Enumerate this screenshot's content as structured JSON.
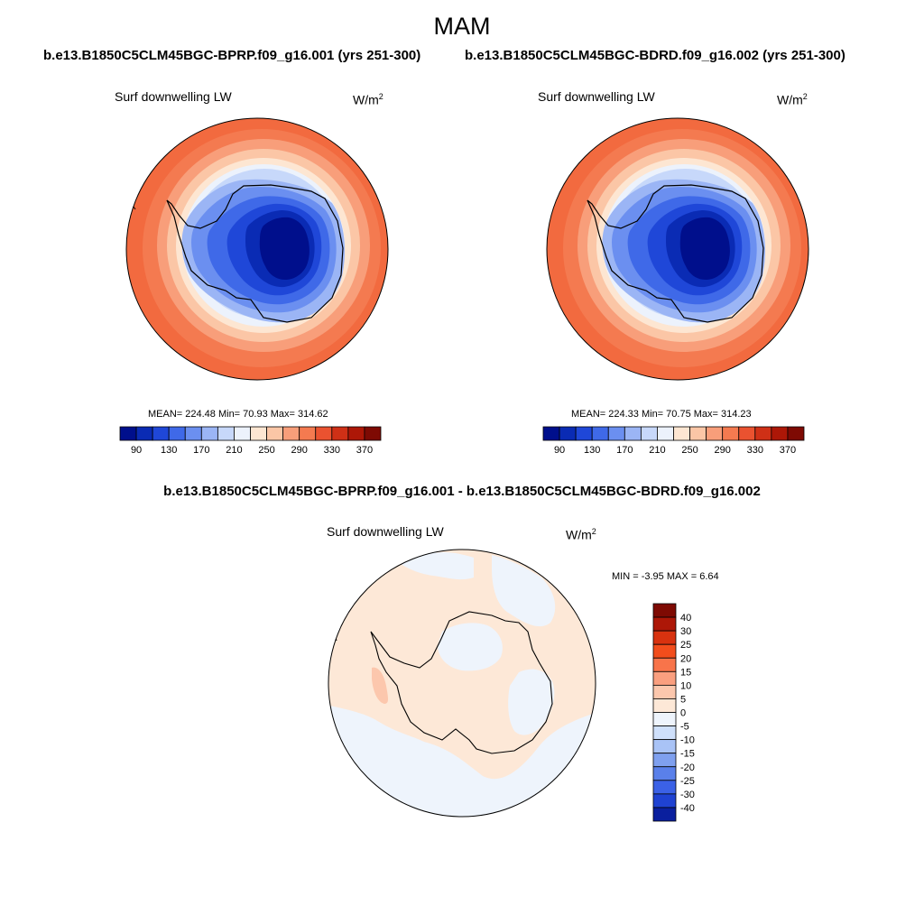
{
  "page": {
    "season_title": "MAM",
    "left_run_title": "b.e13.B1850C5CLM45BGC-BPRP.f09_g16.001 (yrs 251-300)",
    "right_run_title": "b.e13.B1850C5CLM45BGC-BDRD.f09_g16.002 (yrs 251-300)",
    "difference_title": "b.e13.B1850C5CLM45BGC-BPRP.f09_g16.001 - b.e13.B1850C5CLM45BGC-BDRD.f09_g16.002"
  },
  "panels": {
    "left": {
      "variable": "Surf downwelling LW",
      "units": "W/m",
      "units_exponent": "2",
      "stats": "MEAN= 224.48  Min=  70.93  Max= 314.62"
    },
    "right": {
      "variable": "Surf downwelling LW",
      "units": "W/m",
      "units_exponent": "2",
      "stats": "MEAN= 224.33  Min=  70.75  Max= 314.23"
    },
    "difference": {
      "variable": "Surf downwelling LW",
      "units": "W/m",
      "units_exponent": "2",
      "stats": "MIN =  -3.95 MAX =   6.64"
    }
  },
  "colorbars": {
    "absolute": {
      "tick_labels": [
        "90",
        "130",
        "170",
        "210",
        "250",
        "290",
        "330",
        "370"
      ],
      "colors": [
        "#000f8c",
        "#0a2bb4",
        "#1f47d8",
        "#3f69e8",
        "#6b8ff0",
        "#9bb5f5",
        "#c7d8fa",
        "#ecf2fc",
        "#fde6d2",
        "#fbc6a6",
        "#f89e7a",
        "#f47a50",
        "#ea5230",
        "#cf3016",
        "#ad1707",
        "#7e0a03"
      ]
    },
    "difference": {
      "tick_labels": [
        "40",
        "30",
        "25",
        "20",
        "15",
        "10",
        "5",
        "0",
        "-5",
        "-10",
        "-15",
        "-20",
        "-25",
        "-30",
        "-40"
      ],
      "colors_top_to_bottom": [
        "#7e0a03",
        "#ad1707",
        "#d8320f",
        "#f24d1c",
        "#f8744a",
        "#fa9f7f",
        "#fcc7ad",
        "#fde8d7",
        "#eef4fc",
        "#cfe0fb",
        "#a9c3f6",
        "#7fa0ef",
        "#5a80ea",
        "#3b61e6",
        "#1f42d2",
        "#0a1f9e"
      ]
    }
  }
}
